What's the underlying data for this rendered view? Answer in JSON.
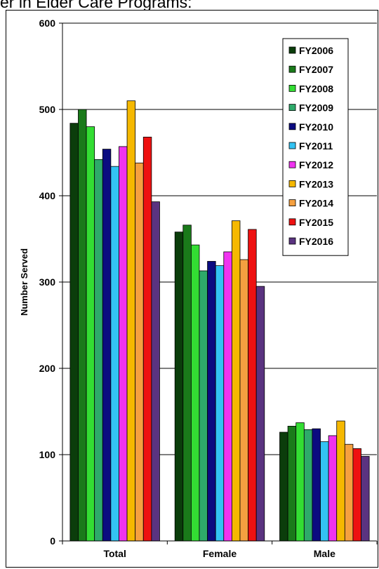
{
  "header": {
    "title_fragment": "er in Elder Care Programs:"
  },
  "chart_data": {
    "type": "bar",
    "ylabel": "Number Served",
    "xlabel": "",
    "ylim": [
      0,
      600
    ],
    "yticks": [
      0,
      100,
      200,
      300,
      400,
      500,
      600
    ],
    "grid": true,
    "legend_position": "top-right",
    "categories": [
      "Total",
      "Female",
      "Male"
    ],
    "series": [
      {
        "name": "FY2006",
        "color": "#0b3d0b",
        "values": [
          484,
          358,
          126
        ]
      },
      {
        "name": "FY2007",
        "color": "#1a7a1a",
        "values": [
          500,
          366,
          133
        ]
      },
      {
        "name": "FY2008",
        "color": "#33dd33",
        "values": [
          480,
          343,
          137
        ]
      },
      {
        "name": "FY2009",
        "color": "#2eaa6a",
        "values": [
          442,
          313,
          129
        ]
      },
      {
        "name": "FY2010",
        "color": "#0b0b80",
        "values": [
          454,
          324,
          130
        ]
      },
      {
        "name": "FY2011",
        "color": "#33c3f3",
        "values": [
          434,
          319,
          115
        ]
      },
      {
        "name": "FY2012",
        "color": "#f033f0",
        "values": [
          457,
          335,
          122
        ]
      },
      {
        "name": "FY2013",
        "color": "#f5b800",
        "values": [
          510,
          371,
          139
        ]
      },
      {
        "name": "FY2014",
        "color": "#f5a040",
        "values": [
          438,
          326,
          112
        ]
      },
      {
        "name": "FY2015",
        "color": "#ee1111",
        "values": [
          468,
          361,
          107
        ]
      },
      {
        "name": "FY2016",
        "color": "#5a3380",
        "values": [
          393,
          295,
          98
        ]
      }
    ]
  }
}
